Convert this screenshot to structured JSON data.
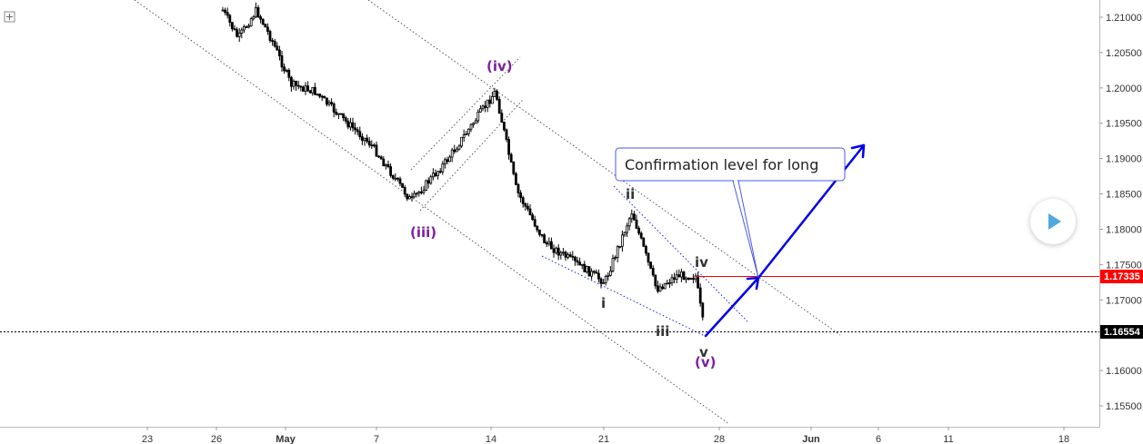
{
  "chart_data": {
    "type": "candlestick",
    "title": "",
    "x_axis": {
      "tick_labels": [
        "23",
        "26",
        "May",
        "7",
        "14",
        "21",
        "28",
        "Jun",
        "6",
        "11",
        "18"
      ]
    },
    "y_axis": {
      "range": [
        1.151,
        1.2125
      ],
      "tick_values": [
        1.155,
        1.16,
        1.165,
        1.17,
        1.175,
        1.18,
        1.185,
        1.19,
        1.195,
        1.2,
        1.205,
        1.21
      ],
      "tick_labels": [
        "1.15500",
        "1.16000",
        "1.16500",
        "1.17000",
        "1.17500",
        "1.18000",
        "1.18500",
        "1.19000",
        "1.19500",
        "1.20000",
        "1.20500",
        "1.21000"
      ]
    },
    "price_path_approx": [
      {
        "date": "Apr 25",
        "price": 1.211
      },
      {
        "date": "Apr 26",
        "price": 1.207
      },
      {
        "date": "Apr 27",
        "price": 1.211
      },
      {
        "date": "Apr 30",
        "price": 1.2065
      },
      {
        "date": "May 1",
        "price": 1.2005
      },
      {
        "date": "May 3",
        "price": 1.1995
      },
      {
        "date": "May 5",
        "price": 1.1955
      },
      {
        "date": "May 7",
        "price": 1.192
      },
      {
        "date": "May 9",
        "price": 1.184
      },
      {
        "date": "May 11",
        "price": 1.1895
      },
      {
        "date": "May 14",
        "price": 1.1995
      },
      {
        "date": "May 16",
        "price": 1.1855
      },
      {
        "date": "May 18",
        "price": 1.178
      },
      {
        "date": "May 21",
        "price": 1.1725
      },
      {
        "date": "May 22",
        "price": 1.1825
      },
      {
        "date": "May 24",
        "price": 1.1715
      },
      {
        "date": "May 25",
        "price": 1.1735
      },
      {
        "date": "May 26",
        "price": 1.17335
      },
      {
        "date": "May 27",
        "price": 1.1652
      }
    ],
    "horizontal_lines": [
      {
        "price": 1.17335,
        "label": "1.17335",
        "color": "#ff0000",
        "style": "solid"
      },
      {
        "price": 1.16554,
        "label": "1.16554",
        "color": "#000000",
        "style": "dotted"
      }
    ],
    "wave_labels": [
      {
        "text": "(iv)",
        "color": "#7b1fa2"
      },
      {
        "text": "(iii)",
        "color": "#7b1fa2"
      },
      {
        "text": "(v)",
        "color": "#7b1fa2"
      },
      {
        "text": "ii",
        "color": "#333333"
      },
      {
        "text": "i",
        "color": "#333333"
      },
      {
        "text": "iii",
        "color": "#333333"
      },
      {
        "text": "iv",
        "color": "#333333"
      },
      {
        "text": "v",
        "color": "#333333"
      }
    ],
    "callout": {
      "text": "Confirmation level for long"
    },
    "projection_color": "#0000ee",
    "grid": false
  },
  "ui": {
    "corner_icon": "crosshair-plus-icon",
    "play_icon": "play-icon"
  }
}
